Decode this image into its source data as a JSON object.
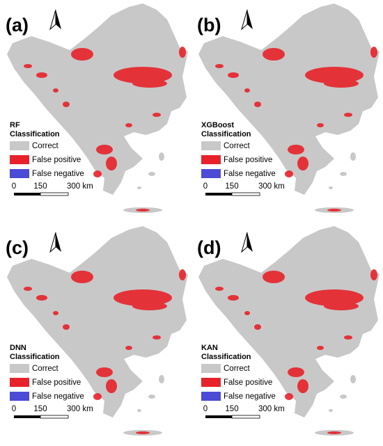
{
  "panels": [
    {
      "label": "(a)",
      "model": "RF",
      "legend_title": "Classification"
    },
    {
      "label": "(b)",
      "model": "XGBoost",
      "legend_title": "Classification"
    },
    {
      "label": "(c)",
      "model": "DNN",
      "legend_title": "Classification"
    },
    {
      "label": "(d)",
      "model": "KAN",
      "legend_title": "Classification"
    }
  ],
  "legend": [
    {
      "name": "Correct",
      "color": "#c8c8c8"
    },
    {
      "name": "False positive",
      "color": "#e8222a"
    },
    {
      "name": "False negative",
      "color": "#4b4bd6"
    }
  ],
  "scale_labels": [
    "0",
    "150",
    "300 km"
  ]
}
